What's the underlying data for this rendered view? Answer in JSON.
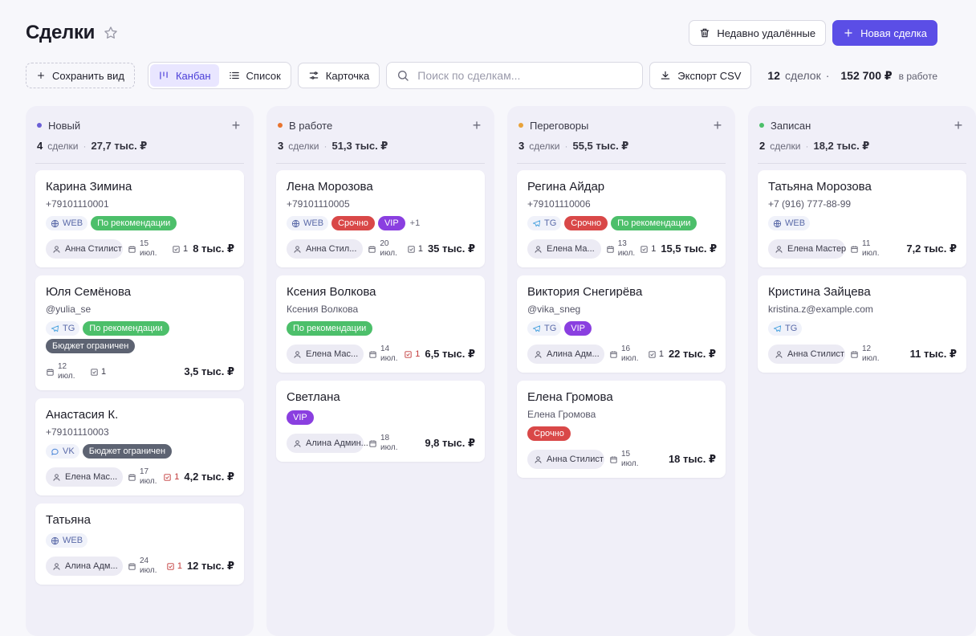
{
  "header": {
    "title": "Сделки",
    "recently_deleted": "Недавно удалённые",
    "new_deal": "Новая сделка"
  },
  "toolbar": {
    "save_view": "Сохранить вид",
    "view_kanban": "Канбан",
    "view_list": "Список",
    "view_card": "Карточка",
    "search_placeholder": "Поиск по сделкам...",
    "export": "Экспорт CSV",
    "stats_count": "12",
    "stats_count_label": "сделок",
    "stats_sum": "152 700 ₽",
    "stats_sum_label": "в работе"
  },
  "colors": {
    "accent": "#5b4ee6",
    "new": "#6b5fd6",
    "in_work": "#e8742f",
    "negotiation": "#e8a23a",
    "booked": "#4cbf6a"
  },
  "columns": [
    {
      "name": "Новый",
      "count": "4",
      "count_label": "сделки",
      "total": "27,7 тыс. ₽",
      "cards": [
        {
          "name": "Карина Зимина",
          "sub": "+79101110001",
          "source": "WEB",
          "tags": [
            "По рекомендации"
          ],
          "assignee": "Анна Стилист",
          "date": "15 июл.",
          "tasks": "1",
          "tasks_red": false,
          "amount": "8 тыс. ₽"
        },
        {
          "name": "Юля Семёнова",
          "sub": "@yulia_se",
          "source": "TG",
          "tags": [
            "По рекомендации",
            "Бюджет ограничен"
          ],
          "assignee": "",
          "date": "12 июл.",
          "tasks": "1",
          "tasks_red": false,
          "amount": "3,5 тыс. ₽"
        },
        {
          "name": "Анастасия К.",
          "sub": "+79101110003",
          "source": "VK",
          "tags": [
            "Бюджет ограничен"
          ],
          "assignee": "Елена Мас...",
          "date": "17 июл.",
          "tasks": "1",
          "tasks_red": true,
          "amount": "4,2 тыс. ₽"
        },
        {
          "name": "Татьяна",
          "sub": "",
          "source": "WEB",
          "tags": [],
          "assignee": "Алина Адм...",
          "date": "24 июл.",
          "tasks": "1",
          "tasks_red": true,
          "amount": "12 тыс. ₽"
        }
      ]
    },
    {
      "name": "В работе",
      "count": "3",
      "count_label": "сделки",
      "total": "51,3 тыс. ₽",
      "cards": [
        {
          "name": "Лена Морозова",
          "sub": "+79101110005",
          "source": "WEB",
          "tags": [
            "Срочно",
            "VIP"
          ],
          "more": "+1",
          "assignee": "Анна Стил...",
          "date": "20 июл.",
          "tasks": "1",
          "tasks_red": false,
          "amount": "35 тыс. ₽"
        },
        {
          "name": "Ксения Волкова",
          "sub": "Ксения Волкова",
          "source": "",
          "tags": [
            "По рекомендации"
          ],
          "assignee": "Елена Мас...",
          "date": "14 июл.",
          "tasks": "1",
          "tasks_red": true,
          "amount": "6,5 тыс. ₽"
        },
        {
          "name": "Светлана",
          "sub": "",
          "source": "",
          "tags": [
            "VIP"
          ],
          "assignee": "Алина Админ...",
          "date": "18 июл.",
          "tasks": "",
          "tasks_red": false,
          "amount": "9,8 тыс. ₽"
        }
      ]
    },
    {
      "name": "Переговоры",
      "count": "3",
      "count_label": "сделки",
      "total": "55,5 тыс. ₽",
      "cards": [
        {
          "name": "Регина Айдар",
          "sub": "+79101110006",
          "source": "TG",
          "tags": [
            "Срочно",
            "По рекомендации"
          ],
          "assignee": "Елена Ма...",
          "date": "13 июл.",
          "tasks": "1",
          "tasks_red": false,
          "amount": "15,5 тыс. ₽"
        },
        {
          "name": "Виктория Снегирёва",
          "sub": "@vika_sneg",
          "source": "TG",
          "tags": [
            "VIP"
          ],
          "assignee": "Алина Адм...",
          "date": "16 июл.",
          "tasks": "1",
          "tasks_red": false,
          "amount": "22 тыс. ₽"
        },
        {
          "name": "Елена Громова",
          "sub": "Елена Громова",
          "source": "",
          "tags": [
            "Срочно"
          ],
          "assignee": "Анна Стилист",
          "date": "15 июл.",
          "tasks": "",
          "tasks_red": false,
          "amount": "18 тыс. ₽"
        }
      ]
    },
    {
      "name": "Записан",
      "count": "2",
      "count_label": "сделки",
      "total": "18,2 тыс. ₽",
      "cards": [
        {
          "name": "Татьяна Морозова",
          "sub": "+7 (916) 777-88-99",
          "source": "WEB",
          "tags": [],
          "assignee": "Елена Мастер",
          "date": "11 июл.",
          "tasks": "",
          "tasks_red": false,
          "amount": "7,2 тыс. ₽"
        },
        {
          "name": "Кристина Зайцева",
          "sub": "kristina.z@example.com",
          "source": "TG",
          "tags": [],
          "assignee": "Анна Стилист",
          "date": "12 июл.",
          "tasks": "",
          "tasks_red": false,
          "amount": "11 тыс. ₽"
        }
      ]
    }
  ]
}
